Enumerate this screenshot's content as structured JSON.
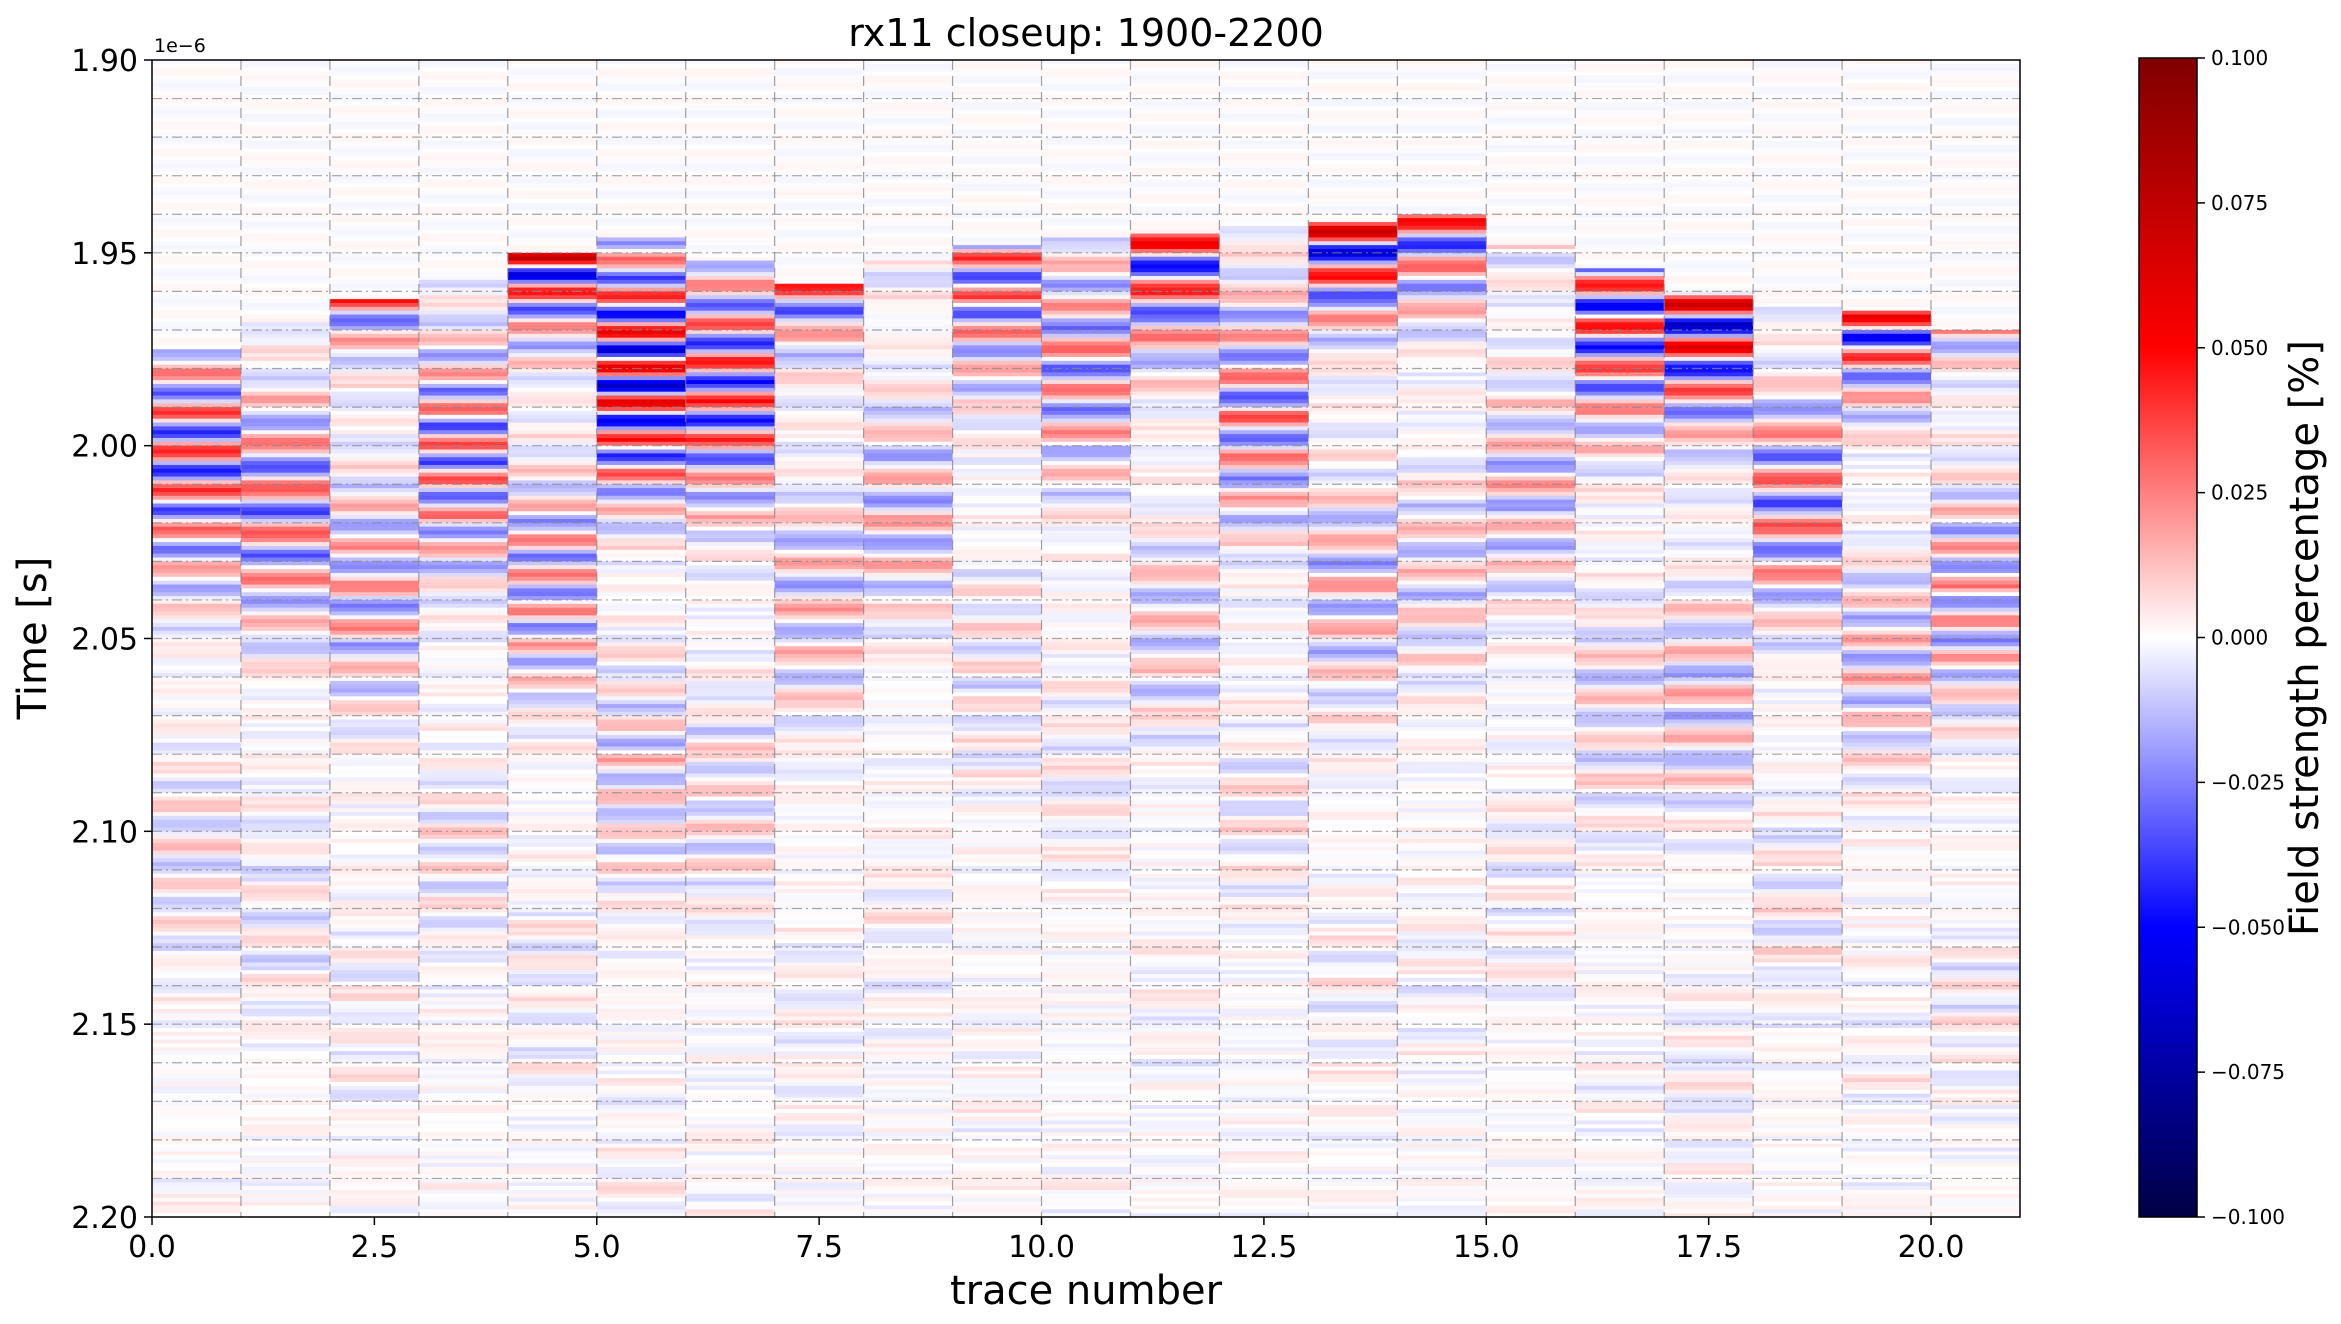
{
  "chart_data": {
    "type": "heatmap",
    "title": "rx11 closeup: 1900-2200",
    "xlabel": "trace number",
    "ylabel": "Time [s]",
    "y_offset_label": "1e−6",
    "xlim": [
      0,
      21
    ],
    "ylim": [
      2.2,
      1.9
    ],
    "y_inverted": true,
    "x_ticks": [
      0.0,
      2.5,
      5.0,
      7.5,
      10.0,
      12.5,
      15.0,
      17.5,
      20.0
    ],
    "x_tick_labels": [
      "0.0",
      "2.5",
      "5.0",
      "7.5",
      "10.0",
      "12.5",
      "15.0",
      "17.5",
      "20.0"
    ],
    "y_ticks": [
      1.9,
      1.95,
      2.0,
      2.05,
      2.1,
      2.15,
      2.2
    ],
    "y_tick_labels": [
      "1.90",
      "1.95",
      "2.00",
      "2.05",
      "2.10",
      "2.15",
      "2.20"
    ],
    "grid": "dashed grey, vertical lines at every integer trace, horizontal lines every 0.01e-6 s",
    "colormap": "seismic (dark blue - white - dark red)",
    "colorbar": {
      "label": "Field strength percentage [%]",
      "vmin": -0.1,
      "vmax": 0.1,
      "ticks": [
        0.1,
        0.075,
        0.05,
        0.025,
        0.0,
        -0.025,
        -0.05,
        -0.075,
        -0.1
      ],
      "tick_labels": [
        "0.100",
        "0.075",
        "0.050",
        "0.025",
        "0.000",
        "−0.025",
        "−0.050",
        "−0.075",
        "−0.100"
      ]
    },
    "traces": [
      0,
      1,
      2,
      3,
      4,
      5,
      6,
      7,
      8,
      9,
      10,
      11,
      12,
      13,
      14,
      15,
      16,
      17,
      18,
      19,
      20
    ],
    "first_arrival_time": [
      1.985,
      1.977,
      1.972,
      1.966,
      1.96,
      1.956,
      1.962,
      1.968,
      1.962,
      1.958,
      1.956,
      1.954,
      1.952,
      1.952,
      1.95,
      1.958,
      1.964,
      1.97,
      1.972,
      1.975,
      1.98
    ],
    "peak_amplitude": [
      0.065,
      0.07,
      0.07,
      0.07,
      0.085,
      0.1,
      0.075,
      0.06,
      0.05,
      0.045,
      0.05,
      0.06,
      0.065,
      0.075,
      0.055,
      0.05,
      0.06,
      0.075,
      0.07,
      0.065,
      0.065
    ]
  }
}
